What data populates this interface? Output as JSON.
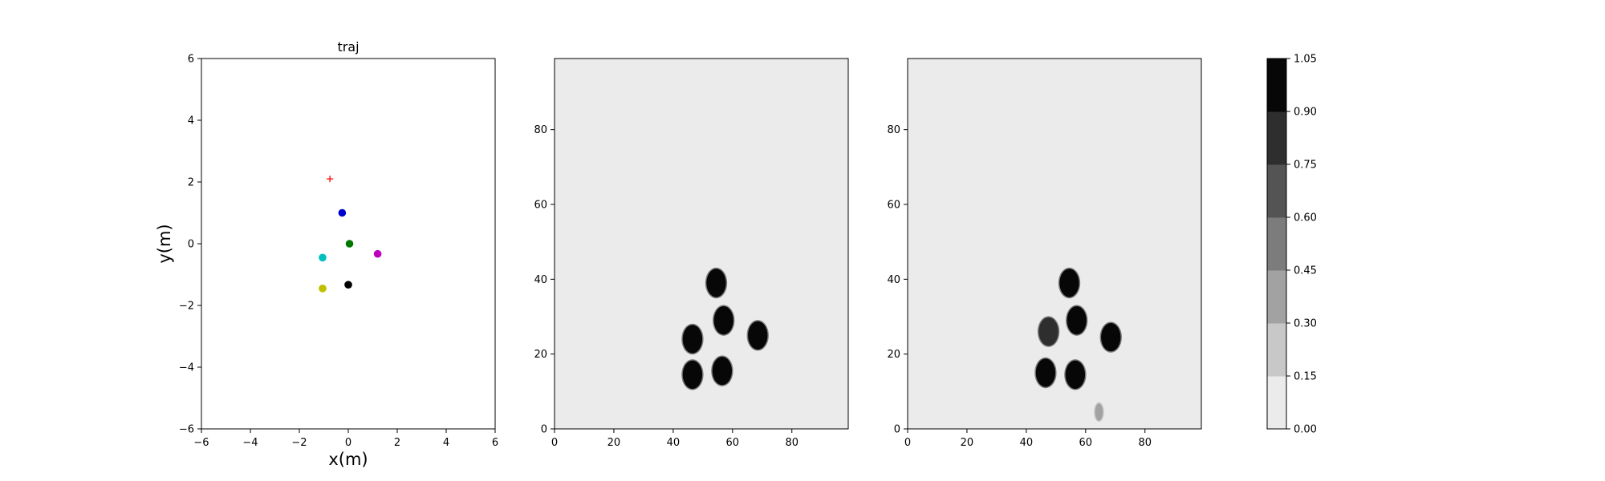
{
  "chart_data": [
    {
      "type": "scatter",
      "title": "traj",
      "xlabel": "x(m)",
      "ylabel": "y(m)",
      "xlim": [
        -6,
        6
      ],
      "ylim": [
        -6,
        6
      ],
      "xticks": [
        -6,
        -4,
        -2,
        0,
        2,
        4,
        6
      ],
      "yticks": [
        -6,
        -4,
        -2,
        0,
        2,
        4,
        6
      ],
      "grid": false,
      "goal": {
        "x": -0.75,
        "y": 2.1,
        "marker": "+",
        "color": "#ff0000"
      },
      "points": [
        {
          "x": -0.25,
          "y": 1.0,
          "color": "#0000cc"
        },
        {
          "x": 0.05,
          "y": 0.0,
          "color": "#007700"
        },
        {
          "x": 1.2,
          "y": -0.33,
          "color": "#bf00bf"
        },
        {
          "x": -1.05,
          "y": -0.45,
          "color": "#00bfbf"
        },
        {
          "x": 0.0,
          "y": -1.33,
          "color": "#000000"
        },
        {
          "x": -1.05,
          "y": -1.45,
          "color": "#bfbf00"
        }
      ]
    },
    {
      "type": "heatmap",
      "xlim": [
        0,
        99
      ],
      "ylim": [
        0,
        99
      ],
      "xticks": [
        0,
        20,
        40,
        60,
        80
      ],
      "yticks": [
        0,
        20,
        40,
        60,
        80
      ],
      "background_value": 0.0,
      "blobs": [
        {
          "x": 54.5,
          "y": 39,
          "value": 1.0
        },
        {
          "x": 57,
          "y": 29,
          "value": 1.0
        },
        {
          "x": 68.5,
          "y": 25,
          "value": 1.0
        },
        {
          "x": 46.5,
          "y": 24,
          "value": 1.0
        },
        {
          "x": 46.5,
          "y": 14.5,
          "value": 1.0
        },
        {
          "x": 56.5,
          "y": 15.5,
          "value": 1.0
        }
      ]
    },
    {
      "type": "heatmap",
      "xlim": [
        0,
        99
      ],
      "ylim": [
        0,
        99
      ],
      "xticks": [
        0,
        20,
        40,
        60,
        80
      ],
      "yticks": [
        0,
        20,
        40,
        60,
        80
      ],
      "background_value": 0.0,
      "blobs": [
        {
          "x": 54.5,
          "y": 39,
          "value": 1.0
        },
        {
          "x": 57,
          "y": 29,
          "value": 1.0
        },
        {
          "x": 68.5,
          "y": 24.5,
          "value": 1.0
        },
        {
          "x": 47.5,
          "y": 26,
          "value": 0.8
        },
        {
          "x": 46.5,
          "y": 15,
          "value": 1.0
        },
        {
          "x": 56.5,
          "y": 14.5,
          "value": 1.0
        },
        {
          "x": 64.5,
          "y": 4.5,
          "value": 0.35
        }
      ]
    },
    {
      "type": "colorbar",
      "levels": [
        "0.00",
        "0.15",
        "0.30",
        "0.45",
        "0.60",
        "0.75",
        "0.90",
        "1.05"
      ],
      "colors": [
        "#ebebeb",
        "#c8c8c8",
        "#a2a2a2",
        "#7c7c7c",
        "#545454",
        "#2e2e2e",
        "#070707"
      ]
    }
  ]
}
